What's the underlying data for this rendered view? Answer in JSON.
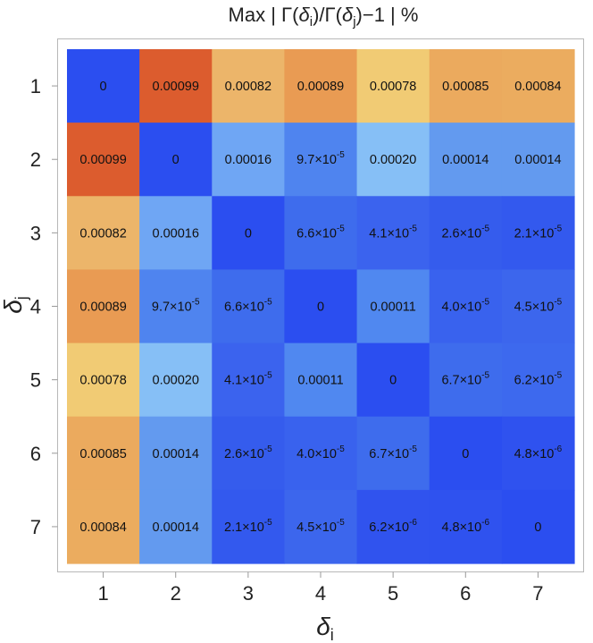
{
  "chart_data": {
    "type": "heatmap",
    "title": "Max | Γ(δᵢ)/Γ(δⱼ)−1 | %",
    "title_parts": {
      "prefix": "Max | Γ(",
      "delta": "δ",
      "i": "i",
      "mid": ")/Γ(",
      "j": "j",
      "suffix": ")−1 | %"
    },
    "xlabel": {
      "symbol": "δ",
      "sub": "i"
    },
    "ylabel": {
      "symbol": "δ",
      "sub": "j"
    },
    "x_categories": [
      "1",
      "2",
      "3",
      "4",
      "5",
      "6",
      "7"
    ],
    "y_categories": [
      "1",
      "2",
      "3",
      "4",
      "5",
      "6",
      "7"
    ],
    "values": [
      [
        0,
        0.00099,
        0.00082,
        0.00089,
        0.00078,
        0.00085,
        0.00084
      ],
      [
        0.00099,
        0,
        0.00016,
        9.7e-05,
        0.0002,
        0.00014,
        0.00014
      ],
      [
        0.00082,
        0.00016,
        0,
        6.6e-05,
        4.1e-05,
        2.6e-05,
        2.1e-05
      ],
      [
        0.00089,
        9.7e-05,
        6.6e-05,
        0,
        0.00011,
        4e-05,
        4.5e-05
      ],
      [
        0.00078,
        0.0002,
        4.1e-05,
        0.00011,
        0,
        6.7e-05,
        6.2e-05
      ],
      [
        0.00085,
        0.00014,
        2.6e-05,
        4e-05,
        6.7e-05,
        0,
        4.8e-06
      ],
      [
        0.00084,
        0.00014,
        2.1e-05,
        4.5e-05,
        6.2e-06,
        4.8e-06,
        0
      ]
    ],
    "labels": [
      [
        "0",
        "0.00099",
        "0.00082",
        "0.00089",
        "0.00078",
        "0.00085",
        "0.00084"
      ],
      [
        "0.00099",
        "0",
        "0.00016",
        "9.7×10^-5",
        "0.00020",
        "0.00014",
        "0.00014"
      ],
      [
        "0.00082",
        "0.00016",
        "0",
        "6.6×10^-5",
        "4.1×10^-5",
        "2.6×10^-5",
        "2.1×10^-5"
      ],
      [
        "0.00089",
        "9.7×10^-5",
        "6.6×10^-5",
        "0",
        "0.00011",
        "4.0×10^-5",
        "4.5×10^-5"
      ],
      [
        "0.00078",
        "0.00020",
        "4.1×10^-5",
        "0.00011",
        "0",
        "6.7×10^-5",
        "6.2×10^-5"
      ],
      [
        "0.00085",
        "0.00014",
        "2.6×10^-5",
        "4.0×10^-5",
        "6.7×10^-5",
        "0",
        "4.8×10^-6"
      ],
      [
        "0.00084",
        "0.00014",
        "2.1×10^-5",
        "4.5×10^-5",
        "6.2×10^-6",
        "4.8×10^-6",
        "0"
      ]
    ],
    "cell_colors": [
      [
        "#2b4ef0",
        "#dc5c2e",
        "#ecb56a",
        "#e99b53",
        "#f1cb74",
        "#ebaa5e",
        "#ebac5f"
      ],
      [
        "#dc5c2e",
        "#2b4ef0",
        "#6fa6f4",
        "#4f84ef",
        "#86bff6",
        "#639aef",
        "#639aef"
      ],
      [
        "#ecb56a",
        "#6fa6f4",
        "#2b4ef0",
        "#3e6ced",
        "#3b63ee",
        "#355ced",
        "#3359ee"
      ],
      [
        "#e99b53",
        "#4f84ef",
        "#3e6ced",
        "#2b4ef0",
        "#5088f0",
        "#3962ee",
        "#3c66ed"
      ],
      [
        "#f1cb74",
        "#86bff6",
        "#3b63ee",
        "#5088f0",
        "#2b4ef0",
        "#3e6ced",
        "#3d69ee"
      ],
      [
        "#ebaa5e",
        "#639aef",
        "#355ced",
        "#3962ee",
        "#3e6ced",
        "#2b4ef0",
        "#2f52ef"
      ],
      [
        "#ebac5f",
        "#639aef",
        "#3359ee",
        "#3c66ed",
        "#3053ee",
        "#2f52ef",
        "#2b4ef0"
      ]
    ],
    "frame_color": "#b8b8b8",
    "grid": false,
    "legend": "none"
  }
}
